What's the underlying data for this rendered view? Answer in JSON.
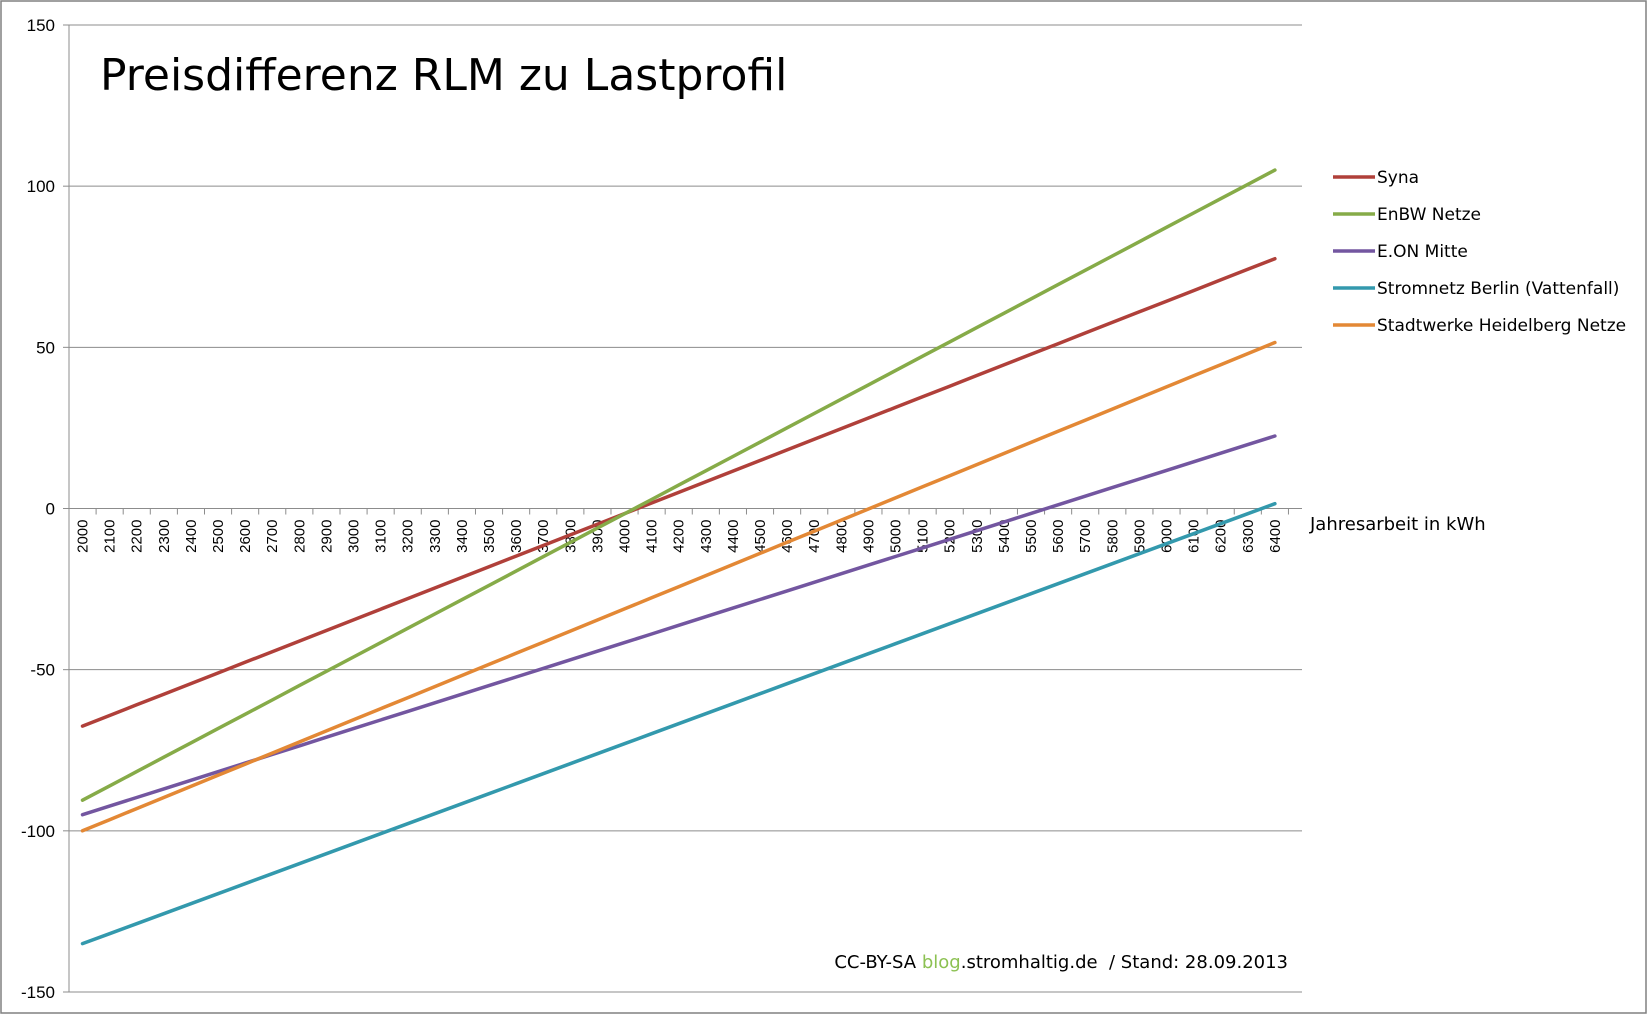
{
  "chart_data": {
    "type": "line",
    "title": "Preisdifferenz RLM zu Lastprofil",
    "xlabel": "Jahresarbeit in kWh",
    "ylabel": "",
    "ylim": [
      -150,
      150
    ],
    "yticks": [
      150,
      100,
      50,
      0,
      -50,
      -100,
      -150
    ],
    "x": [
      2000,
      2100,
      2200,
      2300,
      2400,
      2500,
      2600,
      2700,
      2800,
      2900,
      3000,
      3100,
      3200,
      3300,
      3400,
      3500,
      3600,
      3700,
      3800,
      3900,
      4000,
      4100,
      4200,
      4300,
      4400,
      4500,
      4600,
      4700,
      4800,
      4900,
      5000,
      5100,
      5200,
      5300,
      5400,
      5500,
      5600,
      5700,
      5800,
      5900,
      6000,
      6100,
      6200,
      6300,
      6400
    ],
    "grid": true,
    "legend_position": "right",
    "series": [
      {
        "name": "Syna",
        "color": "#b0403a",
        "start": -67.5,
        "end": 77.5
      },
      {
        "name": "EnBW Netze",
        "color": "#86ab48",
        "start": -90.5,
        "end": 105
      },
      {
        "name": "E.ON Mitte",
        "color": "#7356a0",
        "start": -95,
        "end": 22.5
      },
      {
        "name": "Stromnetz Berlin (Vattenfall)",
        "color": "#3399ad",
        "start": -135,
        "end": 1.5
      },
      {
        "name": "Stadtwerke Heidelberg Netze",
        "color": "#e38835",
        "start": -100,
        "end": 51.5
      }
    ],
    "credit": {
      "prefix": "CC-BY-SA ",
      "highlight": "blog",
      "highlight_color": "#8cc152",
      "suffix": ".stromhaltig.de  / Stand: 28.09.2013"
    }
  }
}
